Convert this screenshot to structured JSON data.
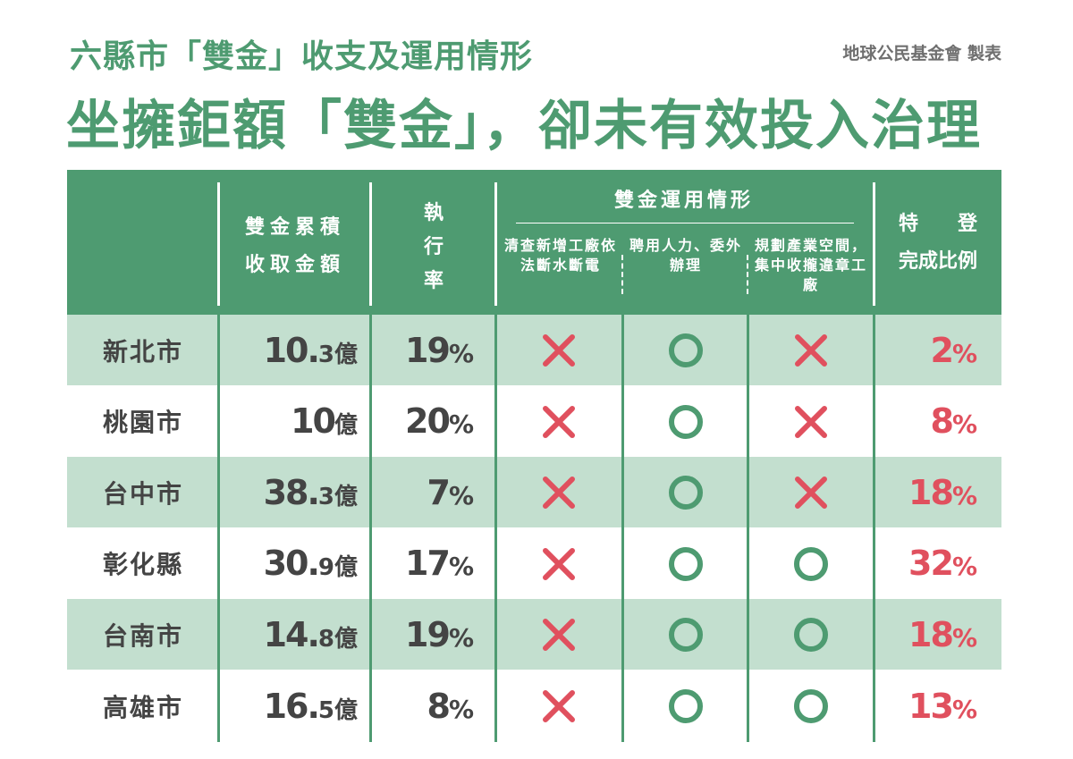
{
  "header": {
    "subtitle": "六縣市「雙金」收支及運用情形",
    "credit": "地球公民基金會 製表",
    "title": "坐擁鉅額「雙金」，卻未有效投入治理"
  },
  "columns": {
    "amount": "雙金累積收取金額",
    "rate": [
      "執",
      "行",
      "率"
    ],
    "usage_group": "雙金運用情形",
    "usage_items": [
      "清查新增工廠依法斷水斷電",
      "聘用人力、委外辦理",
      "規劃產業空間，集中收攏違章工廠"
    ],
    "special_line1": "特　　登",
    "special_line2": "完成比例"
  },
  "colors": {
    "green": "#4e9b71",
    "light_green": "#c3dfcf",
    "red": "#e0505e",
    "gray": "#444444"
  },
  "mark_icons": {
    "yes": "circle-icon",
    "no": "cross-icon"
  },
  "chart_data": {
    "type": "table",
    "rows": [
      {
        "city": "新北市",
        "amount_int": "10.",
        "amount_dec": "3",
        "unit": "億",
        "rate": "19",
        "usage": [
          false,
          true,
          false
        ],
        "ratio": "2"
      },
      {
        "city": "桃園市",
        "amount_int": "10",
        "amount_dec": "",
        "unit": "億",
        "rate": "20",
        "usage": [
          false,
          true,
          false
        ],
        "ratio": "8"
      },
      {
        "city": "台中市",
        "amount_int": "38.",
        "amount_dec": "3",
        "unit": "億",
        "rate": "7",
        "usage": [
          false,
          true,
          false
        ],
        "ratio": "18"
      },
      {
        "city": "彰化縣",
        "amount_int": "30.",
        "amount_dec": "9",
        "unit": "億",
        "rate": "17",
        "usage": [
          false,
          true,
          true
        ],
        "ratio": "32"
      },
      {
        "city": "台南市",
        "amount_int": "14.",
        "amount_dec": "8",
        "unit": "億",
        "rate": "19",
        "usage": [
          false,
          true,
          true
        ],
        "ratio": "18"
      },
      {
        "city": "高雄市",
        "amount_int": "16.",
        "amount_dec": "5",
        "unit": "億",
        "rate": "8",
        "usage": [
          false,
          true,
          true
        ],
        "ratio": "13"
      }
    ],
    "percent_sign": "%"
  }
}
